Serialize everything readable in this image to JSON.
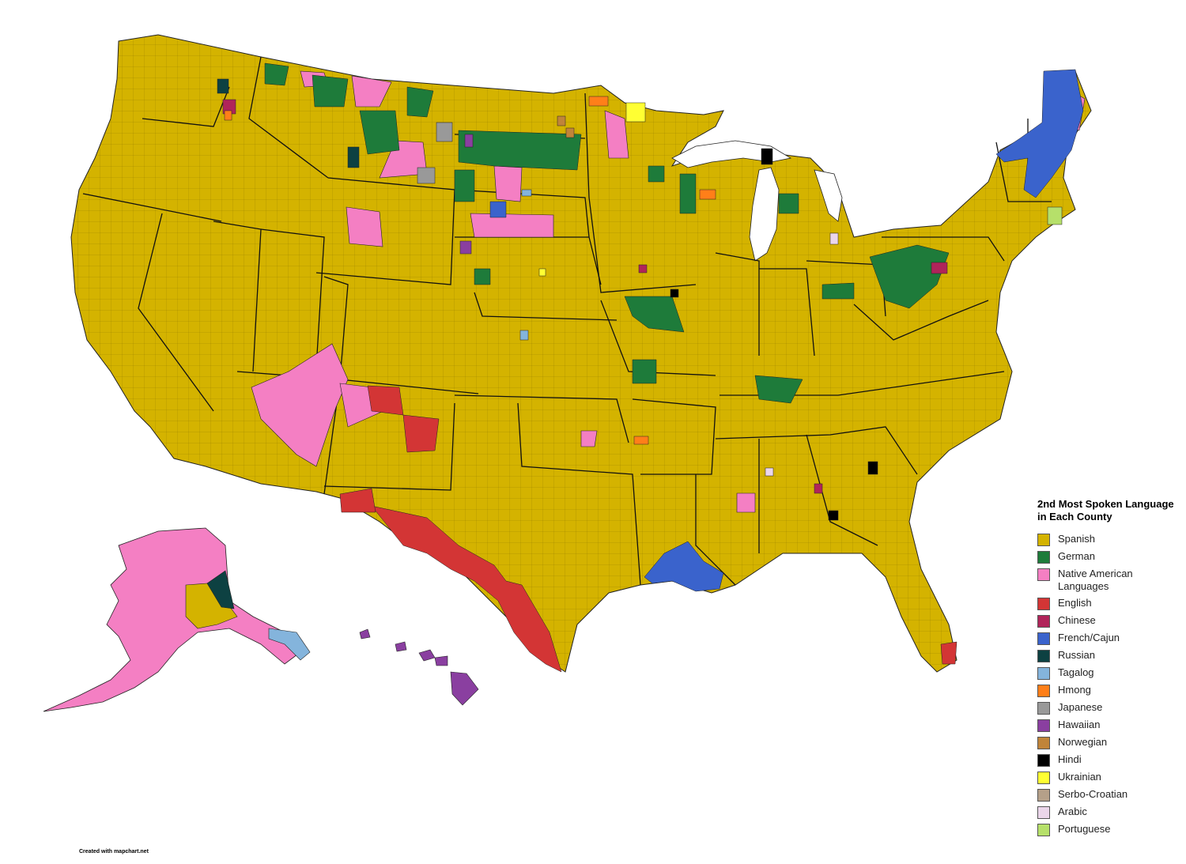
{
  "map": {
    "legend_title": "2nd Most Spoken Language in Each County",
    "legend": [
      {
        "label": "Spanish",
        "color": "#d4b300"
      },
      {
        "label": "German",
        "color": "#1e7b3a"
      },
      {
        "label": "Native American Languages",
        "color": "#f47fc3"
      },
      {
        "label": "English",
        "color": "#d33535"
      },
      {
        "label": "Chinese",
        "color": "#b0245a"
      },
      {
        "label": "French/Cajun",
        "color": "#3a63cc"
      },
      {
        "label": "Russian",
        "color": "#0d4142"
      },
      {
        "label": "Tagalog",
        "color": "#84b4dc"
      },
      {
        "label": "Hmong",
        "color": "#ff7f19"
      },
      {
        "label": "Japanese",
        "color": "#999999"
      },
      {
        "label": "Hawaiian",
        "color": "#8a3fa0"
      },
      {
        "label": "Norwegian",
        "color": "#c0843a"
      },
      {
        "label": "Hindi",
        "color": "#000000"
      },
      {
        "label": "Ukrainian",
        "color": "#ffff33"
      },
      {
        "label": "Serbo-Croatian",
        "color": "#b5a089"
      },
      {
        "label": "Arabic",
        "color": "#ebd6ea"
      },
      {
        "label": "Portuguese",
        "color": "#b6e06a"
      }
    ],
    "credit": "Created with mapchart.net"
  }
}
